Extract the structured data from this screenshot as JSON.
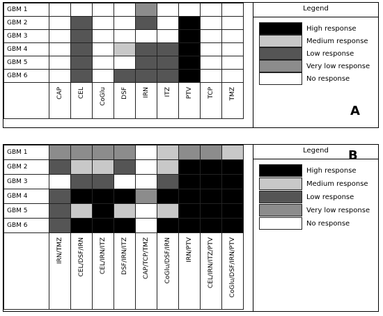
{
  "levels": {
    "H": {
      "label": "High response",
      "color": "#000000"
    },
    "M": {
      "label": "Medium response",
      "color": "#c8c8c8"
    },
    "L": {
      "label": "Low response",
      "color": "#555555"
    },
    "V": {
      "label": "Very low response",
      "color": "#8c8c8c"
    },
    "N": {
      "label": "No response",
      "color": "#ffffff"
    }
  },
  "legend_order": [
    "H",
    "M",
    "L",
    "V",
    "N"
  ],
  "panels": [
    {
      "letter": "A",
      "legend_title": "Legend",
      "rows": [
        "GBM 1",
        "GBM 2",
        "GBM 3",
        "GBM 4",
        "GBM 5",
        "GBM 6"
      ],
      "columns": [
        "CAP",
        "CEL",
        "CoGlu",
        "DSF",
        "IRN",
        "ITZ",
        "PTV",
        "TCP",
        "TMZ"
      ],
      "matrix": [
        [
          "N",
          "N",
          "N",
          "N",
          "V",
          "N",
          "N",
          "N",
          "N"
        ],
        [
          "N",
          "L",
          "N",
          "N",
          "L",
          "N",
          "H",
          "N",
          "N"
        ],
        [
          "N",
          "L",
          "N",
          "N",
          "N",
          "N",
          "H",
          "N",
          "N"
        ],
        [
          "N",
          "L",
          "N",
          "M",
          "L",
          "L",
          "H",
          "N",
          "N"
        ],
        [
          "N",
          "L",
          "N",
          "N",
          "L",
          "L",
          "H",
          "N",
          "N"
        ],
        [
          "N",
          "L",
          "N",
          "L",
          "L",
          "L",
          "H",
          "N",
          "N"
        ]
      ]
    },
    {
      "letter": "B",
      "legend_title": "Legend",
      "rows": [
        "GBM 1",
        "GBM 2",
        "GBM 3",
        "GBM 4",
        "GBM 5",
        "GBM 6"
      ],
      "columns": [
        "IRN/TMZ",
        "CEL/DSF/IRN",
        "CEL/IRN/ITZ",
        "DSF/IRN/ITZ",
        "CAP/TCP/TMZ",
        "CoGlu/DSF/IRN",
        "IRN/PTV",
        "CEL/IRN/ITZ/PTV",
        "CoGlu/DSF/IRN/PTV"
      ],
      "matrix": [
        [
          "V",
          "V",
          "V",
          "V",
          "N",
          "M",
          "V",
          "V",
          "M"
        ],
        [
          "L",
          "M",
          "M",
          "L",
          "N",
          "M",
          "H",
          "H",
          "H"
        ],
        [
          "N",
          "L",
          "L",
          "N",
          "N",
          "L",
          "H",
          "H",
          "H"
        ],
        [
          "L",
          "H",
          "H",
          "H",
          "V",
          "H",
          "H",
          "H",
          "H"
        ],
        [
          "L",
          "M",
          "H",
          "M",
          "N",
          "M",
          "H",
          "H",
          "H"
        ],
        [
          "L",
          "H",
          "H",
          "H",
          "N",
          "H",
          "H",
          "H",
          "H"
        ]
      ]
    }
  ]
}
